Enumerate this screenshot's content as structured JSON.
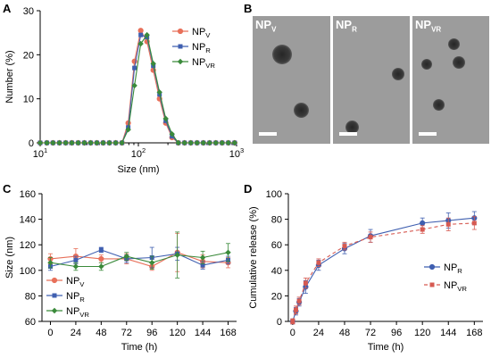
{
  "panels": {
    "a": "A",
    "b": "B",
    "c": "C",
    "d": "D"
  },
  "tem": {
    "images": [
      {
        "label_main": "NP",
        "label_sub": "V"
      },
      {
        "label_main": "NP",
        "label_sub": "R"
      },
      {
        "label_main": "NP",
        "label_sub": "VR"
      }
    ]
  },
  "chart_data": [
    {
      "id": "A",
      "type": "line",
      "xscale": "log",
      "xlabel": "Size (nm)",
      "ylabel": "Number (%)",
      "xlim": [
        10,
        1000
      ],
      "ylim": [
        0,
        30
      ],
      "xticks": [
        {
          "v": 10,
          "label": "10",
          "sup": "1"
        },
        {
          "v": 100,
          "label": "10",
          "sup": "2"
        },
        {
          "v": 1000,
          "label": "10",
          "sup": "3"
        }
      ],
      "yticks": [
        0,
        10,
        20,
        30
      ],
      "legend": "top-right",
      "x": [
        10,
        11.7,
        13.5,
        15.7,
        18.2,
        21.0,
        24.4,
        28.2,
        32.7,
        37.8,
        43.8,
        50.7,
        58.8,
        68.1,
        78.8,
        91.3,
        105.7,
        122.4,
        141.8,
        164.2,
        190.1,
        220.2,
        255.0,
        295.3,
        342.0,
        396.1,
        458.7,
        531.2,
        615.1,
        712.3,
        825.0,
        955.4
      ],
      "series": [
        {
          "name_main": "NP",
          "name_sub": "V",
          "color": "#e8705a",
          "marker": "circle",
          "values": [
            0,
            0,
            0,
            0,
            0,
            0,
            0,
            0,
            0,
            0,
            0,
            0,
            0,
            0,
            4.5,
            18.5,
            25.5,
            23.0,
            16.5,
            10.0,
            4.5,
            1.2,
            0,
            0,
            0,
            0,
            0,
            0,
            0,
            0,
            0,
            0
          ]
        },
        {
          "name_main": "NP",
          "name_sub": "R",
          "color": "#3f5fb0",
          "marker": "square",
          "values": [
            0,
            0,
            0,
            0,
            0,
            0,
            0,
            0,
            0,
            0,
            0,
            0,
            0,
            0,
            3.5,
            17.0,
            24.5,
            24.0,
            17.5,
            11.0,
            5.0,
            1.5,
            0,
            0,
            0,
            0,
            0,
            0,
            0,
            0,
            0,
            0
          ]
        },
        {
          "name_main": "NP",
          "name_sub": "VR",
          "color": "#3a8a3a",
          "marker": "diamond",
          "values": [
            0,
            0,
            0,
            0,
            0,
            0,
            0,
            0,
            0,
            0,
            0,
            0,
            0,
            0,
            3.0,
            13.0,
            22.5,
            24.5,
            18.0,
            11.5,
            5.5,
            2.0,
            0,
            0,
            0,
            0,
            0,
            0,
            0,
            0,
            0,
            0
          ]
        }
      ]
    },
    {
      "id": "C",
      "type": "line",
      "xlabel": "Time (h)",
      "ylabel": "Size (nm)",
      "xlim": [
        -8,
        176
      ],
      "ylim": [
        60,
        160
      ],
      "xticks": [
        0,
        24,
        48,
        72,
        96,
        120,
        144,
        168
      ],
      "yticks": [
        60,
        80,
        100,
        120,
        140,
        160
      ],
      "legend": "bottom-left",
      "x": [
        0,
        24,
        48,
        72,
        96,
        120,
        144,
        168
      ],
      "series": [
        {
          "name_main": "NP",
          "name_sub": "V",
          "color": "#e8705a",
          "marker": "circle",
          "values": [
            109,
            111,
            109,
            109,
            103,
            114,
            107,
            106
          ],
          "errors": [
            4,
            6,
            3,
            4,
            3,
            15,
            5,
            4
          ]
        },
        {
          "name_main": "NP",
          "name_sub": "R",
          "color": "#3f5fb0",
          "marker": "square",
          "values": [
            103,
            108,
            116,
            109,
            110,
            113,
            104,
            108
          ],
          "errors": [
            3,
            3,
            2,
            3,
            8,
            5,
            3,
            3
          ]
        },
        {
          "name_main": "NP",
          "name_sub": "VR",
          "color": "#3a8a3a",
          "marker": "diamond",
          "values": [
            106,
            103,
            103,
            111,
            106,
            112,
            110,
            114
          ],
          "errors": [
            4,
            3,
            3,
            3,
            5,
            18,
            5,
            7
          ]
        }
      ]
    },
    {
      "id": "D",
      "type": "line",
      "xlabel": "Time (h)",
      "ylabel": "Cumulative release (%)",
      "xlim": [
        -4,
        176
      ],
      "ylim": [
        0,
        100
      ],
      "xticks": [
        0,
        24,
        48,
        72,
        96,
        120,
        144,
        168
      ],
      "yticks": [
        0,
        20,
        40,
        60,
        80,
        100
      ],
      "legend": "right",
      "x": [
        0,
        3,
        6,
        12,
        24,
        48,
        72,
        120,
        144,
        168
      ],
      "series": [
        {
          "name_main": "NP",
          "name_sub": "R",
          "color": "#3f5fb0",
          "marker": "circle",
          "dash": "",
          "values": [
            0,
            8,
            15,
            27,
            44,
            57,
            67,
            77,
            79,
            81
          ],
          "errors": [
            2,
            3,
            3,
            5,
            4,
            4,
            5,
            4,
            6,
            5
          ]
        },
        {
          "name_main": "NP",
          "name_sub": "VR",
          "color": "#d65a52",
          "marker": "square",
          "dash": "4,3",
          "values": [
            0,
            9,
            16,
            30,
            46,
            59,
            66,
            72,
            76,
            77
          ],
          "errors": [
            2,
            3,
            3,
            4,
            3,
            3,
            4,
            3,
            5,
            5
          ]
        }
      ]
    }
  ]
}
